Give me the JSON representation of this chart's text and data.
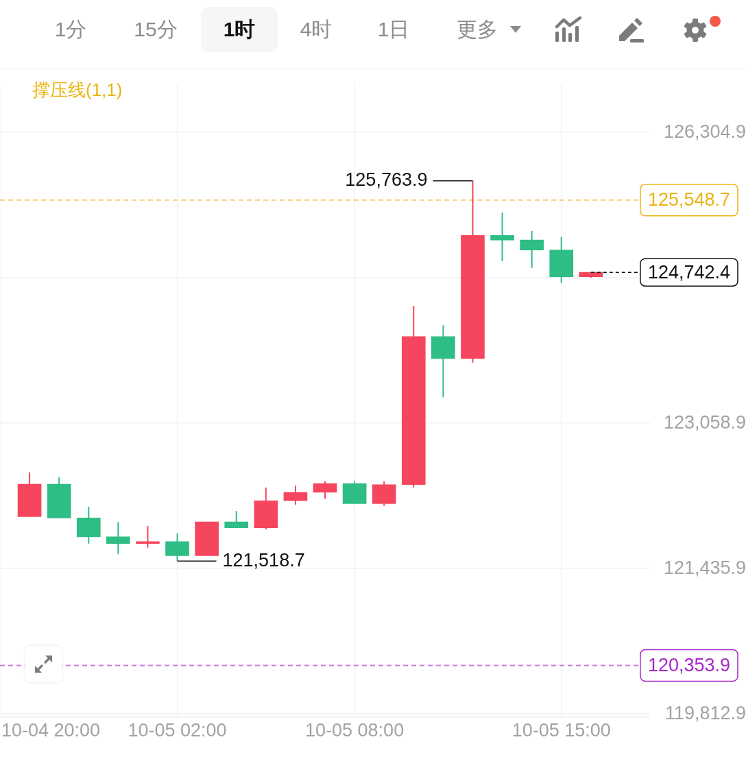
{
  "chart_data": {
    "type": "candlestick",
    "x": [
      "--10-04T21:00",
      "--10-04T22:00",
      "--10-04T23:00",
      "--10-05T00:00",
      "--10-05T01:00",
      "--10-05T02:00",
      "--10-05T03:00",
      "--10-05T04:00",
      "--10-05T05:00",
      "--10-05T06:00",
      "--10-05T07:00",
      "--10-05T08:00",
      "--10-05T09:00",
      "--10-05T10:00",
      "--10-05T11:00",
      "--10-05T12:00",
      "--10-05T13:00",
      "--10-05T14:00",
      "--10-05T15:00",
      "--10-05T16:00"
    ],
    "ohlc": [
      [
        122015,
        122508,
        122015,
        122378
      ],
      [
        122378,
        122454,
        122000,
        122000
      ],
      [
        122000,
        122125,
        121714,
        121790
      ],
      [
        121790,
        121956,
        121599,
        121714
      ],
      [
        121714,
        121910,
        121668,
        121737
      ],
      [
        121737,
        121826,
        121518.7,
        121579
      ],
      [
        121579,
        121956,
        121579,
        121956
      ],
      [
        121956,
        122077,
        121890,
        121890
      ],
      [
        121890,
        122339,
        121872,
        122192
      ],
      [
        122192,
        122360,
        122148,
        122286
      ],
      [
        122286,
        122408,
        122214,
        122383
      ],
      [
        122383,
        122410,
        122153,
        122161
      ],
      [
        122161,
        122408,
        122135,
        122372
      ],
      [
        122372,
        124368,
        122342,
        124026
      ],
      [
        124026,
        124151,
        123348,
        123779
      ],
      [
        123779,
        125763.9,
        123735,
        125154
      ],
      [
        125154,
        125409,
        124868,
        125103
      ],
      [
        125103,
        125203,
        124792,
        124991
      ],
      [
        124991,
        125136,
        124623,
        124692
      ],
      [
        124692,
        124742.4,
        124680,
        124742.4
      ]
    ],
    "colors": [
      "#f6465d",
      "#2ebd85",
      "#2ebd85",
      "#2ebd85",
      "#f6465d",
      "#2ebd85",
      "#f6465d",
      "#2ebd85",
      "#f6465d",
      "#f6465d",
      "#f6465d",
      "#2ebd85",
      "#f6465d",
      "#f6465d",
      "#2ebd85",
      "#f6465d",
      "#2ebd85",
      "#2ebd85",
      "#2ebd85",
      "#f6465d"
    ],
    "xlim": [
      "--10-04T20:00",
      "--10-05T18:00"
    ],
    "xticks": [
      {
        "value": "--10-04T20:00",
        "label": "10-04 20:00"
      },
      {
        "value": "--10-05T02:00",
        "label": "10-05 02:00"
      },
      {
        "value": "--10-05T08:00",
        "label": "10-05 08:00"
      },
      {
        "value": "--10-05T15:00",
        "label": "10-05 15:00"
      }
    ],
    "ylim": [
      119775,
      126855
    ],
    "yticks": [
      {
        "value": 119812.9,
        "label": "119,812.9"
      },
      {
        "value": 121435.9,
        "label": "121,435.9"
      },
      {
        "value": 123058.9,
        "label": "123,058.9"
      },
      {
        "value": 124681.9,
        "label": null
      },
      {
        "value": 126304.9,
        "label": "126,304.9"
      }
    ],
    "grid": true,
    "ref_lines": [
      {
        "axis": "y",
        "value": 125548.7,
        "label": "125,548.7",
        "color": "#ebb30f",
        "line_style": "dashed"
      },
      {
        "axis": "y",
        "value": 120353.9,
        "label": "120,353.9",
        "color": "#a626c9",
        "line_style": "dashed"
      }
    ],
    "annotations": [
      "1分",
      "15分",
      "1时",
      "4时",
      "1日",
      "更多",
      "撑压线(1,1)",
      {
        "text": "125,763.9",
        "x": "--10-05T12:00",
        "y": 125763.9
      },
      {
        "text": "121,518.7",
        "x": "--10-05T02:00",
        "y": 121518.7
      },
      {
        "text": "124,742.4",
        "x": "--10-05T16:00",
        "y": 124742.4
      }
    ]
  }
}
